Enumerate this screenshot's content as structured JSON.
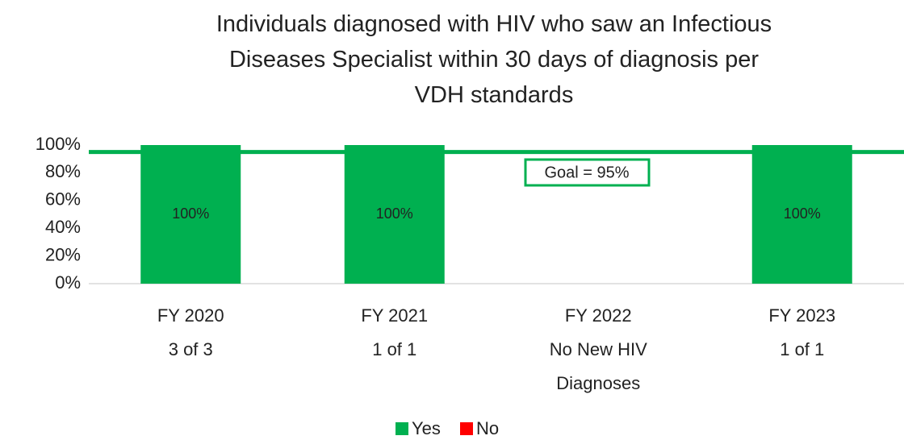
{
  "chart_data": {
    "type": "stacked_bar",
    "title": "Individuals diagnosed with HIV who saw an Infectious Diseases Specialist within 30 days of diagnosis per VDH standards",
    "categories": [
      [
        "FY 2020",
        "3 of 3"
      ],
      [
        "FY 2021",
        "1 of 1"
      ],
      [
        "FY 2022",
        "No New HIV",
        "Diagnoses"
      ],
      [
        "FY 2023",
        "1 of 1"
      ]
    ],
    "series": [
      {
        "name": "Yes",
        "color": "#00b050",
        "values": [
          100,
          100,
          null,
          100
        ],
        "value_labels": [
          "100%",
          "100%",
          null,
          "100%"
        ]
      },
      {
        "name": "No",
        "color": "#ff0000",
        "values": [
          0,
          0,
          null,
          0
        ]
      }
    ],
    "ylim": [
      0,
      100
    ],
    "yticks": [
      {
        "value": 0,
        "label": "0%"
      },
      {
        "value": 20,
        "label": "20%"
      },
      {
        "value": 40,
        "label": "40%"
      },
      {
        "value": 60,
        "label": "60%"
      },
      {
        "value": 80,
        "label": "80%"
      },
      {
        "value": 100,
        "label": "100%"
      }
    ],
    "grid": false,
    "goal": {
      "value": 95,
      "label": "Goal = 95%",
      "color": "#00b050"
    },
    "legend": "bottom"
  }
}
